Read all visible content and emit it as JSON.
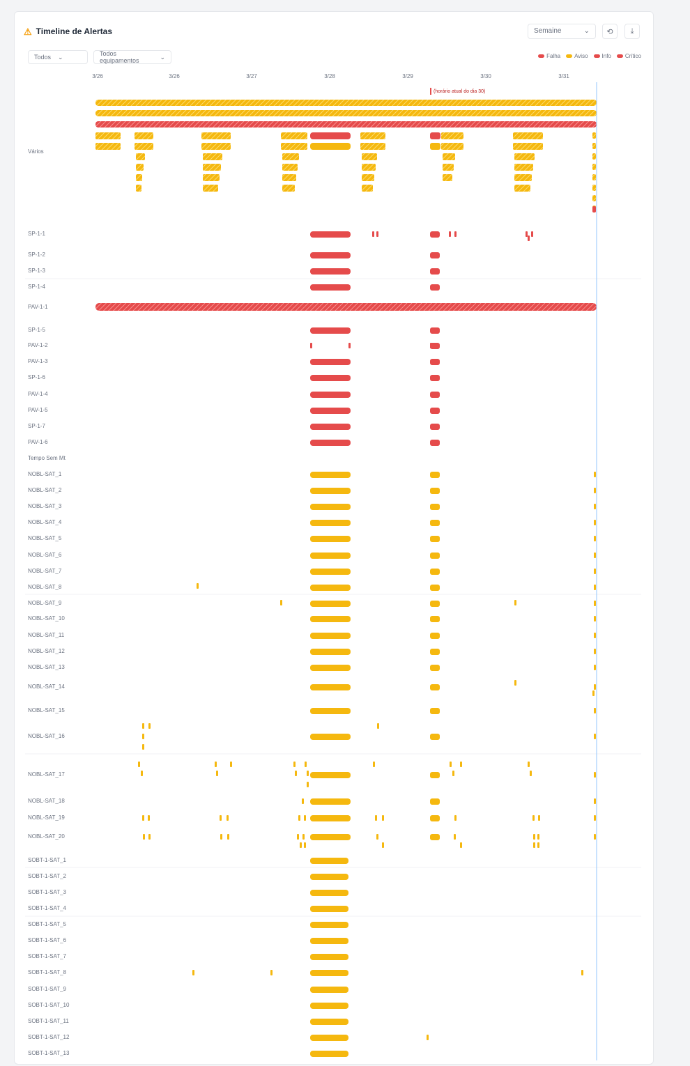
{
  "title": "Timeline de Alertas",
  "period": {
    "label": "Semaine"
  },
  "filters": [
    {
      "label": "Todos"
    },
    {
      "label": "Todos equipamentos"
    }
  ],
  "legend": [
    {
      "label": "Falha",
      "color": "#e54b4b"
    },
    {
      "label": "Aviso",
      "color": "#f5b80f"
    },
    {
      "label": "Info",
      "color": "#e54b4b"
    },
    {
      "label": "Crítico",
      "color": "#e54b4b"
    }
  ],
  "colors": {
    "critical": "#e54b4b",
    "warning": "#f5b80f",
    "now": "#93c5fd"
  },
  "ticks": [
    "3/26",
    "3/26",
    "3/27",
    "3/28",
    "3/29",
    "3/30",
    "3/31"
  ],
  "now_marker": {
    "label": "(horário atual do dia 30)"
  },
  "icons": [
    "warning-icon",
    "history-icon",
    "download-icon",
    "chevron-down-icon"
  ],
  "rows": [
    {
      "label": "Vários"
    },
    {
      "label": "SP-1-1"
    },
    {
      "label": "SP-1-2"
    },
    {
      "label": "SP-1-3"
    },
    {
      "label": "SP-1-4"
    },
    {
      "label": "PAV-1-1"
    },
    {
      "label": "SP-1-5"
    },
    {
      "label": "PAV-1-2"
    },
    {
      "label": "PAV-1-3"
    },
    {
      "label": "SP-1-6"
    },
    {
      "label": "PAV-1-4"
    },
    {
      "label": "PAV-1-5"
    },
    {
      "label": "SP-1-7"
    },
    {
      "label": "PAV-1-6"
    },
    {
      "label": "Tempo Sem Mt"
    },
    {
      "label": "NOBL-SAT_1"
    },
    {
      "label": "NOBL-SAT_2"
    },
    {
      "label": "NOBL-SAT_3"
    },
    {
      "label": "NOBL-SAT_4"
    },
    {
      "label": "NOBL-SAT_5"
    },
    {
      "label": "NOBL-SAT_6"
    },
    {
      "label": "NOBL-SAT_7"
    },
    {
      "label": "NOBL-SAT_8"
    },
    {
      "label": "NOBL-SAT_9"
    },
    {
      "label": "NOBL-SAT_10"
    },
    {
      "label": "NOBL-SAT_11"
    },
    {
      "label": "NOBL-SAT_12"
    },
    {
      "label": "NOBL-SAT_13"
    },
    {
      "label": "NOBL-SAT_14"
    },
    {
      "label": "NOBL-SAT_15"
    },
    {
      "label": "NOBL-SAT_16"
    },
    {
      "label": "NOBL-SAT_17"
    },
    {
      "label": "NOBL-SAT_18"
    },
    {
      "label": "NOBL-SAT_19"
    },
    {
      "label": "NOBL-SAT_20"
    },
    {
      "label": "SOBT-1-SAT_1"
    },
    {
      "label": "SOBT-1-SAT_2"
    },
    {
      "label": "SOBT-1-SAT_3"
    },
    {
      "label": "SOBT-1-SAT_4"
    },
    {
      "label": "SOBT-1-SAT_5"
    },
    {
      "label": "SOBT-1-SAT_6"
    },
    {
      "label": "SOBT-1-SAT_7"
    },
    {
      "label": "SOBT-1-SAT_8"
    },
    {
      "label": "SOBT-1-SAT_9"
    },
    {
      "label": "SOBT-1-SAT_10"
    },
    {
      "label": "SOBT-1-SAT_11"
    },
    {
      "label": "SOBT-1-SAT_12"
    },
    {
      "label": "SOBT-1-SAT_13"
    }
  ]
}
